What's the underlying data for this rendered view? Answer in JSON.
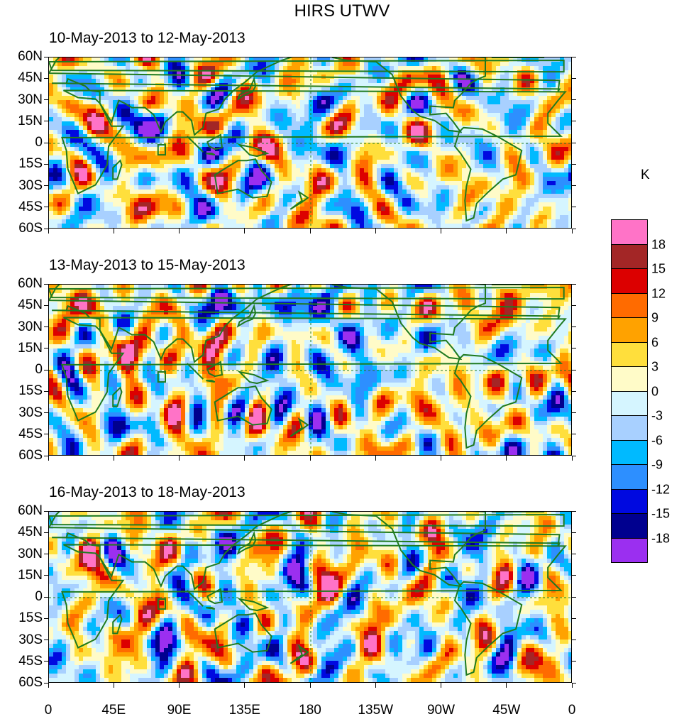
{
  "title": "HIRS UTWV",
  "panels": [
    {
      "subtitle": "10-May-2013 to 12-May-2013"
    },
    {
      "subtitle": "13-May-2013 to 15-May-2013"
    },
    {
      "subtitle": "16-May-2013 to 18-May-2013"
    }
  ],
  "lat_labels": [
    "60N",
    "45N",
    "30N",
    "15N",
    "0",
    "15S",
    "30S",
    "45S",
    "60S"
  ],
  "lon_labels": [
    "0",
    "45E",
    "90E",
    "135E",
    "180",
    "135W",
    "90W",
    "45W",
    "0"
  ],
  "colorbar": {
    "unit": "K",
    "levels": [
      "18",
      "15",
      "12",
      "9",
      "6",
      "3",
      "0",
      "-3",
      "-6",
      "-9",
      "-12",
      "-15",
      "-18"
    ],
    "colors": [
      "#ff73c7",
      "#a32626",
      "#dc0000",
      "#ff6b00",
      "#ffa200",
      "#ffdf3c",
      "#fffbc8",
      "#d5f5ff",
      "#a8d0ff",
      "#00baff",
      "#2d8fff",
      "#0009e0",
      "#00008f",
      "#9b2ff0"
    ]
  },
  "map_layers": [
    "coastlines",
    "country-borders",
    "us-state-borders",
    "equator-line",
    "dateline-line",
    "region-box"
  ]
}
